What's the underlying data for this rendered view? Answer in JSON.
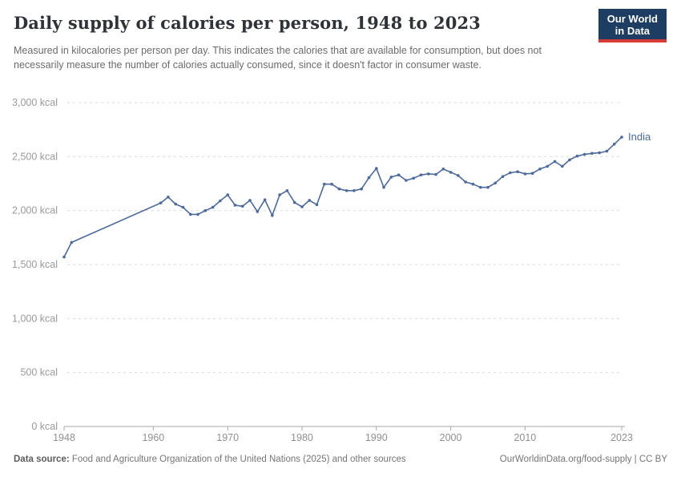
{
  "header": {
    "title": "Daily supply of calories per person, 1948 to 2023",
    "subtitle": "Measured in kilocalories per person per day. This indicates the calories that are available for consumption, but does not necessarily measure the number of calories actually consumed, since it doesn't factor in consumer waste.",
    "logo": {
      "line1": "Our World",
      "line2": "in Data",
      "bg_color": "#1d3d63",
      "accent_color": "#d73a36"
    }
  },
  "chart_data": {
    "type": "line",
    "title": "Daily supply of calories per person, 1948 to 2023",
    "xlabel": "",
    "ylabel": "",
    "xlim": [
      1948,
      2023
    ],
    "ylim": [
      0,
      3000
    ],
    "grid": "horizontal-dashed",
    "legend_position": "end-of-line-label",
    "x_ticks": [
      {
        "value": 1948,
        "label": "1948"
      },
      {
        "value": 1960,
        "label": "1960"
      },
      {
        "value": 1970,
        "label": "1970"
      },
      {
        "value": 1980,
        "label": "1980"
      },
      {
        "value": 1990,
        "label": "1990"
      },
      {
        "value": 2000,
        "label": "2000"
      },
      {
        "value": 2010,
        "label": "2010"
      },
      {
        "value": 2023,
        "label": "2023"
      }
    ],
    "y_ticks": [
      {
        "value": 0,
        "label": "0 kcal"
      },
      {
        "value": 500,
        "label": "500 kcal"
      },
      {
        "value": 1000,
        "label": "1,000 kcal"
      },
      {
        "value": 1500,
        "label": "1,500 kcal"
      },
      {
        "value": 2000,
        "label": "2,000 kcal"
      },
      {
        "value": 2500,
        "label": "2,500 kcal"
      },
      {
        "value": 3000,
        "label": "3,000 kcal"
      }
    ],
    "series": [
      {
        "name": "India",
        "color": "#4c6a9c",
        "points": [
          [
            1948,
            1570
          ],
          [
            1949,
            1705
          ],
          [
            1961,
            2070
          ],
          [
            1962,
            2125
          ],
          [
            1963,
            2060
          ],
          [
            1964,
            2030
          ],
          [
            1965,
            1965
          ],
          [
            1966,
            1965
          ],
          [
            1967,
            2000
          ],
          [
            1968,
            2030
          ],
          [
            1969,
            2090
          ],
          [
            1970,
            2145
          ],
          [
            1971,
            2050
          ],
          [
            1972,
            2040
          ],
          [
            1973,
            2095
          ],
          [
            1974,
            1990
          ],
          [
            1975,
            2100
          ],
          [
            1976,
            1955
          ],
          [
            1977,
            2145
          ],
          [
            1978,
            2185
          ],
          [
            1979,
            2075
          ],
          [
            1980,
            2035
          ],
          [
            1981,
            2095
          ],
          [
            1982,
            2055
          ],
          [
            1983,
            2245
          ],
          [
            1984,
            2245
          ],
          [
            1985,
            2200
          ],
          [
            1986,
            2185
          ],
          [
            1987,
            2185
          ],
          [
            1988,
            2200
          ],
          [
            1989,
            2305
          ],
          [
            1990,
            2390
          ],
          [
            1991,
            2215
          ],
          [
            1992,
            2310
          ],
          [
            1993,
            2330
          ],
          [
            1994,
            2280
          ],
          [
            1995,
            2300
          ],
          [
            1996,
            2330
          ],
          [
            1997,
            2340
          ],
          [
            1998,
            2335
          ],
          [
            1999,
            2385
          ],
          [
            2000,
            2355
          ],
          [
            2001,
            2325
          ],
          [
            2002,
            2265
          ],
          [
            2003,
            2245
          ],
          [
            2004,
            2215
          ],
          [
            2005,
            2215
          ],
          [
            2006,
            2255
          ],
          [
            2007,
            2315
          ],
          [
            2008,
            2350
          ],
          [
            2009,
            2360
          ],
          [
            2010,
            2340
          ],
          [
            2011,
            2345
          ],
          [
            2012,
            2385
          ],
          [
            2013,
            2410
          ],
          [
            2014,
            2455
          ],
          [
            2015,
            2410
          ],
          [
            2016,
            2470
          ],
          [
            2017,
            2505
          ],
          [
            2018,
            2520
          ],
          [
            2019,
            2530
          ],
          [
            2020,
            2535
          ],
          [
            2021,
            2550
          ],
          [
            2022,
            2615
          ],
          [
            2023,
            2680
          ]
        ]
      }
    ]
  },
  "footer": {
    "datasource_label": "Data source:",
    "datasource_text": " Food and Agriculture Organization of the United Nations (2025) and other sources",
    "right_text": "OurWorldinData.org/food-supply | CC BY"
  }
}
